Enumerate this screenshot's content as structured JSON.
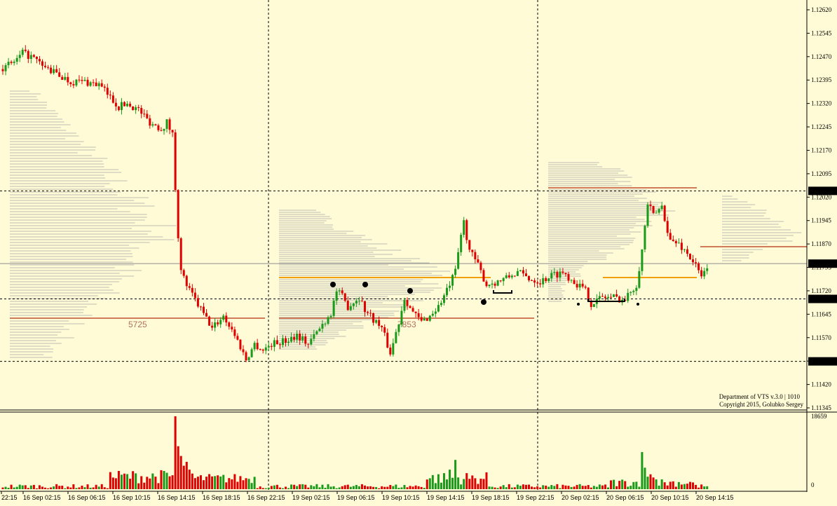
{
  "colors": {
    "background": "#FFFBD6",
    "bull": "#1A9A1A",
    "bear": "#E00000",
    "profile": "#BDBDB3",
    "poc": "#C05030",
    "orange": "#F0A000",
    "marker": "#000000"
  },
  "chart_data": [
    {
      "type": "candlestick",
      "ylim": [
        1.1131,
        1.1266
      ],
      "price_ticks": [
        "1.12620",
        "1.12545",
        "1.12470",
        "1.12395",
        "1.12320",
        "1.12245",
        "1.12170",
        "1.12095",
        "1.12020",
        "1.11945",
        "1.11870",
        "1.11795",
        "1.11720",
        "1.11645",
        "1.11570",
        "1.11495",
        "1.11420",
        "1.11345"
      ],
      "tick_values": [
        1.1262,
        1.12545,
        1.1247,
        1.12395,
        1.1232,
        1.12245,
        1.1217,
        1.12095,
        1.1202,
        1.11945,
        1.1187,
        1.11795,
        1.1172,
        1.11645,
        1.1157,
        1.11495,
        1.1142,
        1.11345
      ],
      "level_labels": [
        "1.12040",
        "1.11807",
        "1.11694",
        "1.11494"
      ],
      "level_values": [
        1.1204,
        1.11807,
        1.11694,
        1.11494
      ],
      "x_labels": [
        "22:15",
        "16 Sep 02:15",
        "16 Sep 06:15",
        "16 Sep 10:15",
        "16 Sep 14:15",
        "16 Sep 18:15",
        "16 Sep 22:15",
        "19 Sep 02:15",
        "19 Sep 06:15",
        "19 Sep 10:15",
        "19 Sep 14:15",
        "19 Sep 18:15",
        "19 Sep 22:15",
        "20 Sep 02:15",
        "20 Sep 06:15",
        "20 Sep 10:15",
        "20 Sep 14:15"
      ],
      "session_separators": [
        "16 Sep 22:15",
        "19 Sep 22:15"
      ],
      "anchors": [
        [
          0,
          1.1243
        ],
        [
          5,
          1.1246
        ],
        [
          7,
          1.1248
        ],
        [
          10,
          1.1247
        ],
        [
          14,
          1.1244
        ],
        [
          18,
          1.1242
        ],
        [
          24,
          1.1239
        ],
        [
          29,
          1.1239
        ],
        [
          34,
          1.1238
        ],
        [
          38,
          1.1234
        ],
        [
          41,
          1.1231
        ],
        [
          44,
          1.1232
        ],
        [
          48,
          1.123
        ],
        [
          52,
          1.1226
        ],
        [
          56,
          1.1224
        ],
        [
          58,
          1.1226
        ],
        [
          60,
          1.1222
        ],
        [
          61,
          1.1205
        ],
        [
          62,
          1.119
        ],
        [
          63,
          1.1178
        ],
        [
          66,
          1.1172
        ],
        [
          70,
          1.1166
        ],
        [
          74,
          1.116
        ],
        [
          78,
          1.1164
        ],
        [
          82,
          1.1158
        ],
        [
          86,
          1.115
        ],
        [
          89,
          1.1155
        ],
        [
          92,
          1.1153
        ],
        [
          95,
          1.1155
        ],
        [
          100,
          1.1156
        ],
        [
          104,
          1.1158
        ],
        [
          108,
          1.1155
        ],
        [
          112,
          1.116
        ],
        [
          116,
          1.1165
        ],
        [
          118,
          1.1172
        ],
        [
          120,
          1.117
        ],
        [
          122,
          1.1167
        ],
        [
          126,
          1.117
        ],
        [
          128,
          1.1166
        ],
        [
          131,
          1.1163
        ],
        [
          134,
          1.116
        ],
        [
          137,
          1.1152
        ],
        [
          140,
          1.1162
        ],
        [
          142,
          1.117
        ],
        [
          145,
          1.1165
        ],
        [
          148,
          1.1162
        ],
        [
          151,
          1.1164
        ],
        [
          154,
          1.1167
        ],
        [
          157,
          1.1172
        ],
        [
          160,
          1.1178
        ],
        [
          162,
          1.119
        ],
        [
          163,
          1.1194
        ],
        [
          165,
          1.1185
        ],
        [
          168,
          1.118
        ],
        [
          171,
          1.1174
        ],
        [
          175,
          1.1175
        ],
        [
          178,
          1.1176
        ],
        [
          182,
          1.1178
        ],
        [
          186,
          1.1176
        ],
        [
          190,
          1.1175
        ],
        [
          194,
          1.1177
        ],
        [
          198,
          1.1178
        ],
        [
          202,
          1.1175
        ],
        [
          206,
          1.1172
        ],
        [
          208,
          1.1168
        ],
        [
          212,
          1.117
        ],
        [
          216,
          1.117
        ],
        [
          220,
          1.1169
        ],
        [
          222,
          1.1172
        ],
        [
          224,
          1.1174
        ],
        [
          226,
          1.1185
        ],
        [
          228,
          1.12
        ],
        [
          230,
          1.1196
        ],
        [
          233,
          1.1199
        ],
        [
          236,
          1.1188
        ],
        [
          239,
          1.1187
        ],
        [
          242,
          1.1184
        ],
        [
          245,
          1.118
        ],
        [
          247,
          1.1176
        ],
        [
          249,
          1.118
        ]
      ],
      "volume_scale_label": "18659",
      "volume_zero_label": "0",
      "volume_max": 18659,
      "point_of_control_labels": [
        "5725",
        "7853"
      ]
    }
  ],
  "watermark": {
    "line1": "Department of VTS  v.3.0 | 1010",
    "line2": "Copyright 2015, Golubko Sergey"
  }
}
